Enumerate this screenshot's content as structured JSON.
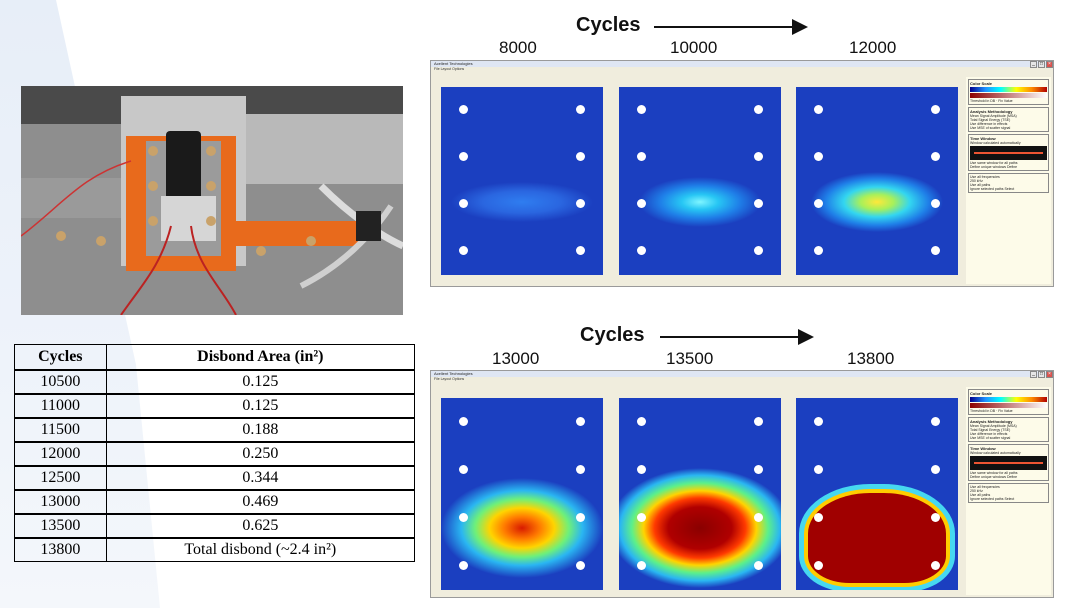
{
  "top_row": {
    "heading": "Cycles",
    "cycle_labels": [
      "8000",
      "10000",
      "12000"
    ]
  },
  "bottom_row": {
    "heading": "Cycles",
    "cycle_labels": [
      "13000",
      "13500",
      "13800"
    ]
  },
  "table": {
    "headers": [
      "Cycles",
      "Disbond Area (in²)"
    ],
    "rows": [
      [
        "10500",
        "0.125"
      ],
      [
        "11000",
        "0.125"
      ],
      [
        "11500",
        "0.188"
      ],
      [
        "12000",
        "0.250"
      ],
      [
        "12500",
        "0.344"
      ],
      [
        "13000",
        "0.469"
      ],
      [
        "13500",
        "0.625"
      ],
      [
        "13800",
        "Total disbond (~2.4 in²)"
      ]
    ]
  },
  "app_window": {
    "title": "Acellent Technologies",
    "menu": "File   Layout   Options",
    "panel": {
      "color_scale_heading": "Color Scale",
      "threshold_label": "Threshold in DB",
      "fix_value_label": "Fix Value",
      "methodology_heading": "Analysis Methodology",
      "method_1": "Mean Signal Amplitude (MSA)",
      "method_2": "Total Signal Energy (TSE)",
      "option_1": "Use difference in effects",
      "option_2": "Use MSE of scatter signal",
      "time_window_heading": "Time Window",
      "auto_window": "Window calculated automatically",
      "same_window": "Use same window for all paths",
      "unique_window": "Define unique windows",
      "define_button": "Define",
      "freq_label": "Use all frequencies",
      "freq_value": "250 kHz",
      "all_paths": "Use all paths",
      "ignore_paths": "Ignore selected paths",
      "select_button": "Select"
    }
  },
  "colors": {
    "plot_background": "#1b3fc0",
    "photo_tape": "#e86a1c"
  }
}
